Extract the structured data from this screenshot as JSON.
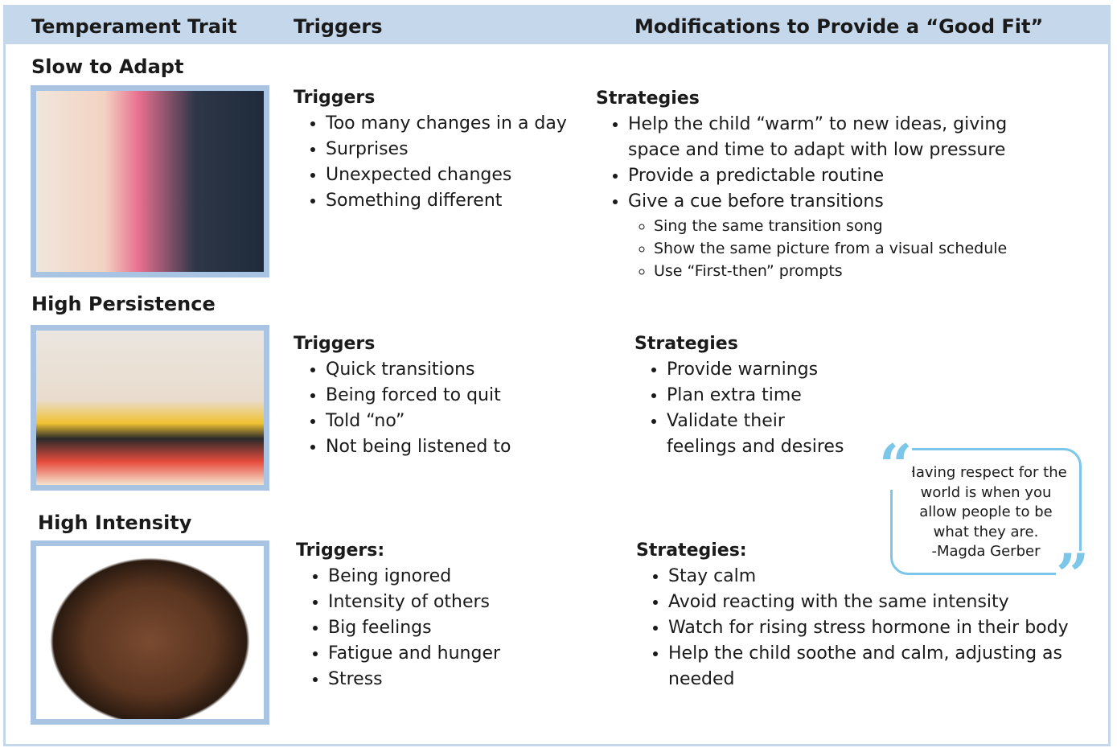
{
  "header": [
    "Temperament Trait",
    "Triggers",
    "Modifications to Provide a “Good Fit”"
  ],
  "rows": [
    {
      "trait": "Slow to Adapt",
      "triggers_heading": "Triggers",
      "triggers": [
        "Too many changes in a day",
        "Surprises",
        "Unexpected changes",
        "Something different"
      ],
      "strategies_heading": "Strategies",
      "strategies": [
        {
          "text": "Help the child “warm” to new ideas, giving space and time to adapt with low pressure"
        },
        {
          "text": "Provide a predictable routine"
        },
        {
          "text": "Give a cue before transitions",
          "sub": [
            "Sing the same transition song",
            "Show the same picture from a visual schedule",
            "Use “First-then” prompts"
          ]
        }
      ]
    },
    {
      "trait": "High Persistence",
      "triggers_heading": "Triggers",
      "triggers": [
        "Quick transitions",
        "Being forced to quit",
        "Told “no”",
        "Not being listened to"
      ],
      "strategies_heading": "Strategies",
      "strategies": [
        {
          "text": "Provide warnings"
        },
        {
          "text": "Plan extra time"
        },
        {
          "text": "Validate their feelings and desires"
        }
      ]
    },
    {
      "trait": "High Intensity",
      "triggers_heading": "Triggers:",
      "triggers": [
        "Being ignored",
        "Intensity of others",
        "Big feelings",
        "Fatigue and hunger",
        "Stress"
      ],
      "strategies_heading": "Strategies:",
      "strategies": [
        {
          "text": "Stay calm"
        },
        {
          "text": "Avoid reacting with the same intensity"
        },
        {
          "text": "Watch for rising stress hormone in their body"
        },
        {
          "text": "Help the child soothe and calm, adjusting as needed"
        }
      ]
    }
  ],
  "quote": {
    "text": "Having respect for the world is when you allow people to be what they are.",
    "author": "-Magda Gerber"
  }
}
